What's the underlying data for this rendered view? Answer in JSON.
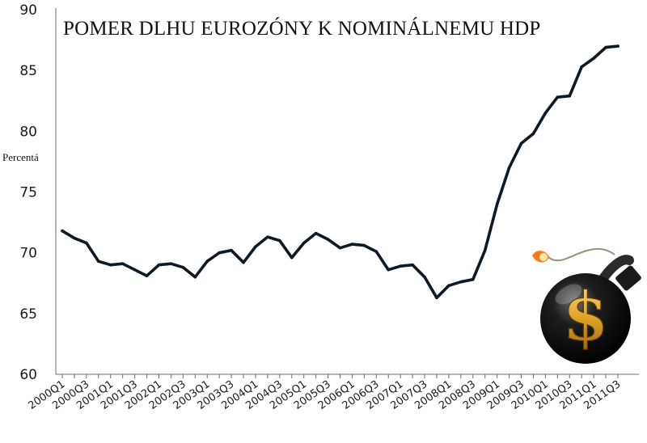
{
  "chart_data": {
    "type": "line",
    "title": "POMER DLHU EUROZÓNY K NOMINÁLNEMU HDP",
    "ylabel": "Percentá",
    "xlabel": "",
    "ylim": [
      60,
      90
    ],
    "y_ticks": [
      "60",
      "65",
      "70",
      "75",
      "80",
      "85",
      "90"
    ],
    "x_tick_labels": [
      "2000Q1",
      "2000Q3",
      "2001Q1",
      "2001Q3",
      "2002Q1",
      "2002Q3",
      "2003Q1",
      "2003Q3",
      "2004Q1",
      "2004Q3",
      "2005Q1",
      "2005Q3",
      "2006Q1",
      "2006Q3",
      "2007Q1",
      "2007Q3",
      "2008Q1",
      "2008Q3",
      "2009Q1",
      "2009Q3",
      "2010Q1",
      "2010Q3",
      "2011Q1",
      "2011Q3"
    ],
    "categories": [
      "2000Q1",
      "2000Q2",
      "2000Q3",
      "2000Q4",
      "2001Q1",
      "2001Q2",
      "2001Q3",
      "2001Q4",
      "2002Q1",
      "2002Q2",
      "2002Q3",
      "2002Q4",
      "2003Q1",
      "2003Q2",
      "2003Q3",
      "2003Q4",
      "2004Q1",
      "2004Q2",
      "2004Q3",
      "2004Q4",
      "2005Q1",
      "2005Q2",
      "2005Q3",
      "2005Q4",
      "2006Q1",
      "2006Q2",
      "2006Q3",
      "2006Q4",
      "2007Q1",
      "2007Q2",
      "2007Q3",
      "2007Q4",
      "2008Q1",
      "2008Q2",
      "2008Q3",
      "2008Q4",
      "2009Q1",
      "2009Q2",
      "2009Q3",
      "2009Q4",
      "2010Q1",
      "2010Q2",
      "2010Q3",
      "2010Q4",
      "2011Q1",
      "2011Q2",
      "2011Q3"
    ],
    "series": [
      {
        "values": [
          71.8,
          71.2,
          70.8,
          69.3,
          69.0,
          69.1,
          68.6,
          68.1,
          69.0,
          69.1,
          68.8,
          68.0,
          69.3,
          70.0,
          70.2,
          69.2,
          70.5,
          71.3,
          71.0,
          69.6,
          70.8,
          71.6,
          71.1,
          70.4,
          70.7,
          70.6,
          70.1,
          68.6,
          68.9,
          69.0,
          68.0,
          66.3,
          67.3,
          67.6,
          67.8,
          70.2,
          74.0,
          77.0,
          79.0,
          79.8,
          81.5,
          82.8,
          82.9,
          85.3,
          86.0,
          86.9,
          87.0
        ]
      }
    ],
    "grid": false,
    "line_color": "#0d1a26",
    "axis_color": "#6b6b6b"
  },
  "decoration": {
    "icon": "dollar-bomb-icon"
  }
}
